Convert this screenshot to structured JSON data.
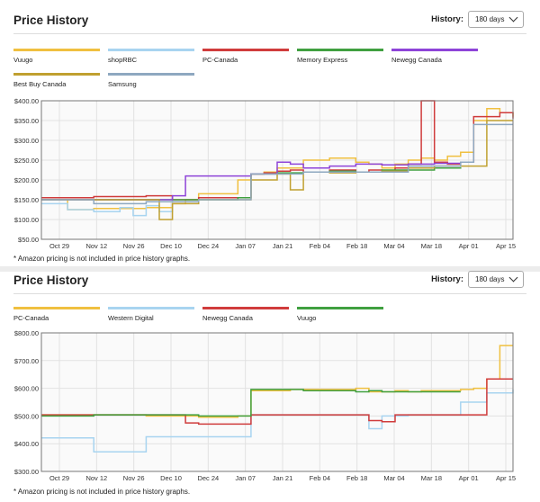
{
  "panels": [
    {
      "title": "Price History",
      "history_label": "History:",
      "history_value": "180 days",
      "legend": [
        {
          "name": "Vuugo",
          "color": "#f0c040"
        },
        {
          "name": "shopRBC",
          "color": "#a8d4f0"
        },
        {
          "name": "PC-Canada",
          "color": "#d03c3c"
        },
        {
          "name": "Memory Express",
          "color": "#40a040"
        },
        {
          "name": "Newegg Canada",
          "color": "#8e44d8"
        },
        {
          "name": "Best Buy Canada",
          "color": "#c0a030"
        },
        {
          "name": "Samsung",
          "color": "#8ea8c0"
        }
      ],
      "note": "* Amazon pricing is not included in price history graphs."
    },
    {
      "title": "Price History",
      "history_label": "History:",
      "history_value": "180 days",
      "legend": [
        {
          "name": "PC-Canada",
          "color": "#f0c040"
        },
        {
          "name": "Western Digital",
          "color": "#a8d4f0"
        },
        {
          "name": "Newegg Canada",
          "color": "#d03c3c"
        },
        {
          "name": "Vuugo",
          "color": "#40a040"
        }
      ],
      "note": "* Amazon pricing is not included in price history graphs."
    }
  ],
  "chart_data": [
    {
      "type": "line",
      "x_ticks": [
        "Oct 29",
        "Nov 12",
        "Nov 26",
        "Dec 10",
        "Dec 24",
        "Jan 07",
        "Jan 21",
        "Feb 04",
        "Feb 18",
        "Mar 04",
        "Mar 18",
        "Apr 01",
        "Apr 15"
      ],
      "y_ticks": [
        "$400.00",
        "$350.00",
        "$300.00",
        "$250.00",
        "$200.00",
        "$150.00",
        "$100.00",
        "$50.00"
      ],
      "ylim": [
        50,
        400
      ],
      "xlim": [
        0,
        180
      ],
      "grid": true,
      "series": [
        {
          "name": "Vuugo",
          "color": "#f0c040",
          "x": [
            0,
            10,
            20,
            40,
            50,
            55,
            60,
            75,
            80,
            85,
            90,
            100,
            110,
            120,
            125,
            130,
            135,
            140,
            145,
            150,
            155,
            160,
            165,
            170,
            175,
            180
          ],
          "y": [
            150,
            125,
            128,
            130,
            140,
            150,
            165,
            200,
            215,
            220,
            230,
            250,
            255,
            245,
            240,
            230,
            240,
            250,
            255,
            250,
            260,
            270,
            350,
            380,
            370,
            360
          ]
        },
        {
          "name": "shopRBC",
          "color": "#a8d4f0",
          "x": [
            0,
            10,
            20,
            30,
            35,
            40,
            45,
            50
          ],
          "y": [
            140,
            125,
            120,
            130,
            110,
            135,
            120,
            150
          ]
        },
        {
          "name": "PC-Canada",
          "color": "#d03c3c",
          "x": [
            0,
            20,
            40,
            50,
            60,
            75,
            80,
            85,
            90,
            95,
            100,
            110,
            120,
            125,
            130,
            135,
            140,
            145,
            150,
            155,
            160,
            165,
            170,
            175,
            180
          ],
          "y": [
            155,
            158,
            160,
            150,
            155,
            155,
            215,
            218,
            222,
            225,
            220,
            225,
            220,
            225,
            220,
            230,
            240,
            400,
            245,
            240,
            245,
            360,
            360,
            370,
            355
          ]
        },
        {
          "name": "Memory Express",
          "color": "#40a040",
          "x": [
            0,
            30,
            50,
            75,
            80,
            90,
            100,
            110,
            120,
            130,
            140,
            150,
            160
          ],
          "y": [
            150,
            150,
            150,
            155,
            215,
            218,
            220,
            222,
            220,
            225,
            225,
            230,
            232
          ]
        },
        {
          "name": "Newegg Canada",
          "color": "#8e44d8",
          "x": [
            0,
            30,
            50,
            55,
            60,
            70,
            80,
            90,
            95,
            100,
            110,
            120,
            130,
            140,
            145,
            150,
            160
          ],
          "y": [
            150,
            150,
            160,
            210,
            210,
            210,
            215,
            245,
            240,
            230,
            235,
            240,
            238,
            240,
            240,
            242,
            240
          ]
        },
        {
          "name": "Best Buy Canada",
          "color": "#c0a030",
          "x": [
            0,
            20,
            40,
            45,
            50,
            60,
            75,
            80,
            90,
            95,
            100,
            110,
            120,
            130,
            140,
            150,
            160,
            170,
            180
          ],
          "y": [
            150,
            150,
            150,
            100,
            140,
            150,
            150,
            200,
            215,
            175,
            220,
            218,
            220,
            222,
            230,
            235,
            235,
            350,
            350
          ]
        },
        {
          "name": "Samsung",
          "color": "#8ea8c0",
          "x": [
            0,
            20,
            40,
            60,
            80,
            100,
            120,
            140,
            160,
            165,
            170,
            180
          ],
          "y": [
            150,
            140,
            145,
            150,
            215,
            220,
            220,
            235,
            245,
            340,
            340,
            340
          ]
        }
      ]
    },
    {
      "type": "line",
      "x_ticks": [
        "Oct 29",
        "Nov 12",
        "Nov 26",
        "Dec 10",
        "Dec 24",
        "Jan 07",
        "Jan 21",
        "Feb 04",
        "Feb 18",
        "Mar 04",
        "Mar 18",
        "Apr 01",
        "Apr 15"
      ],
      "y_ticks": [
        "$800.00",
        "$700.00",
        "$600.00",
        "$500.00",
        "$400.00",
        "$300.00"
      ],
      "ylim": [
        300,
        900
      ],
      "xlim": [
        0,
        180
      ],
      "grid": true,
      "series": [
        {
          "name": "PC-Canada",
          "color": "#f0c040",
          "x": [
            0,
            20,
            40,
            50,
            60,
            75,
            80,
            95,
            110,
            120,
            125,
            130,
            135,
            140,
            145,
            150,
            160,
            165,
            170,
            175,
            180
          ],
          "y": [
            545,
            545,
            540,
            540,
            535,
            540,
            650,
            655,
            655,
            660,
            645,
            645,
            650,
            645,
            650,
            650,
            655,
            660,
            700,
            845,
            845
          ]
        },
        {
          "name": "Western Digital",
          "color": "#a8d4f0",
          "x": [
            0,
            10,
            20,
            25,
            40,
            60,
            75,
            80,
            100,
            120,
            125,
            130,
            140,
            150,
            160,
            170,
            180
          ],
          "y": [
            445,
            445,
            385,
            385,
            450,
            450,
            450,
            545,
            545,
            545,
            485,
            540,
            545,
            545,
            600,
            640,
            655
          ]
        },
        {
          "name": "Newegg Canada",
          "color": "#d03c3c",
          "x": [
            0,
            20,
            40,
            50,
            55,
            60,
            75,
            80,
            100,
            120,
            125,
            130,
            135,
            140,
            150,
            160,
            165,
            170,
            180
          ],
          "y": [
            545,
            545,
            545,
            545,
            510,
            505,
            505,
            545,
            545,
            545,
            520,
            515,
            545,
            545,
            545,
            545,
            545,
            700,
            700
          ]
        },
        {
          "name": "Vuugo",
          "color": "#40a040",
          "x": [
            0,
            20,
            40,
            50,
            60,
            75,
            80,
            90,
            100,
            110,
            120,
            125,
            130,
            140,
            150,
            160
          ],
          "y": [
            540,
            545,
            545,
            545,
            540,
            540,
            655,
            655,
            650,
            650,
            645,
            650,
            645,
            645,
            645,
            645
          ]
        }
      ]
    }
  ]
}
